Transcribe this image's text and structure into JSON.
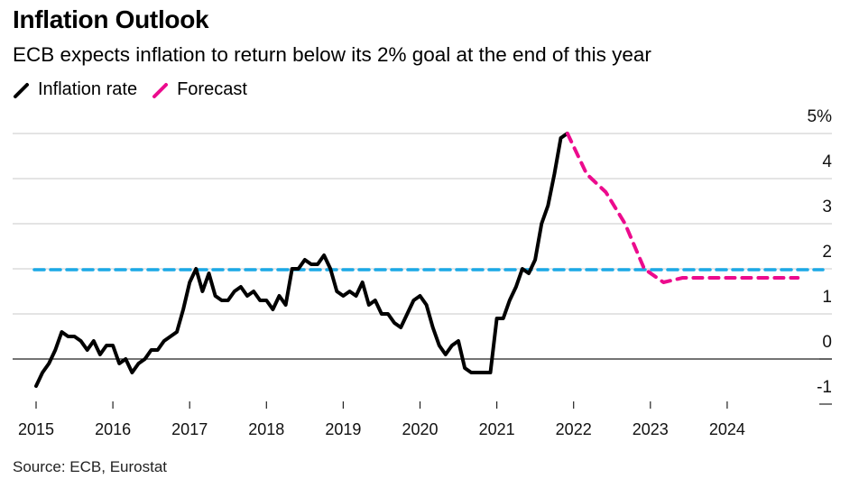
{
  "header": {
    "title": "Inflation Outlook",
    "subtitle": "ECB expects inflation to return below its 2% goal at the end of this year"
  },
  "legend": [
    {
      "label": "Inflation rate",
      "color": "#000000",
      "style": "solid"
    },
    {
      "label": "Forecast",
      "color": "#ec0b8d",
      "style": "dashed"
    }
  ],
  "source": "Source: ECB, Eurostat",
  "chart_data": {
    "type": "line",
    "title": "Inflation Outlook",
    "subtitle": "ECB expects inflation to return below its 2% goal at the end of this year",
    "xlabel": "",
    "ylabel": "",
    "xlim": [
      2015.0,
      2025.0
    ],
    "ylim": [
      -1,
      5
    ],
    "y_ticks": [
      "5%",
      "4",
      "3",
      "2",
      "1",
      "0",
      "-1"
    ],
    "y_tick_values": [
      5,
      4,
      3,
      2,
      1,
      0,
      -1
    ],
    "x_ticks": [
      "2015",
      "2016",
      "2017",
      "2018",
      "2019",
      "2020",
      "2021",
      "2022",
      "2023",
      "2024"
    ],
    "x_tick_values": [
      2015,
      2016,
      2017,
      2018,
      2019,
      2020,
      2021,
      2022,
      2023,
      2024
    ],
    "grid": true,
    "y_axis_position": "right",
    "legend_position": "top-left",
    "target_line": {
      "name": "2% goal",
      "value": 1.98,
      "color": "#1ba9e6",
      "style": "dashed"
    },
    "series": [
      {
        "name": "Inflation rate",
        "color": "#000000",
        "style": "solid",
        "start": 2015.0,
        "step": 0.08333,
        "values": [
          -0.6,
          -0.3,
          -0.1,
          0.2,
          0.6,
          0.5,
          0.5,
          0.4,
          0.2,
          0.4,
          0.1,
          0.3,
          0.3,
          -0.1,
          0.0,
          -0.3,
          -0.1,
          0.0,
          0.2,
          0.2,
          0.4,
          0.5,
          0.6,
          1.1,
          1.7,
          2.0,
          1.5,
          1.9,
          1.4,
          1.3,
          1.3,
          1.5,
          1.6,
          1.4,
          1.5,
          1.3,
          1.3,
          1.1,
          1.4,
          1.2,
          2.0,
          2.0,
          2.2,
          2.1,
          2.1,
          2.3,
          2.0,
          1.5,
          1.4,
          1.5,
          1.4,
          1.7,
          1.2,
          1.3,
          1.0,
          1.0,
          0.8,
          0.7,
          1.0,
          1.3,
          1.4,
          1.2,
          0.7,
          0.3,
          0.1,
          0.3,
          0.4,
          -0.2,
          -0.3,
          -0.3,
          -0.3,
          -0.3,
          0.9,
          0.9,
          1.3,
          1.6,
          2.0,
          1.9,
          2.2,
          3.0,
          3.4,
          4.1,
          4.9,
          5.0
        ]
      },
      {
        "name": "Forecast",
        "color": "#ec0b8d",
        "style": "dashed",
        "x": [
          2021.92,
          2022.17,
          2022.42,
          2022.67,
          2022.92,
          2023.17,
          2023.42,
          2023.67,
          2023.92,
          2024.17,
          2024.42,
          2024.67,
          2024.92
        ],
        "values": [
          5.0,
          4.1,
          3.7,
          3.0,
          2.0,
          1.7,
          1.8,
          1.8,
          1.8,
          1.8,
          1.8,
          1.8,
          1.8
        ]
      }
    ]
  }
}
